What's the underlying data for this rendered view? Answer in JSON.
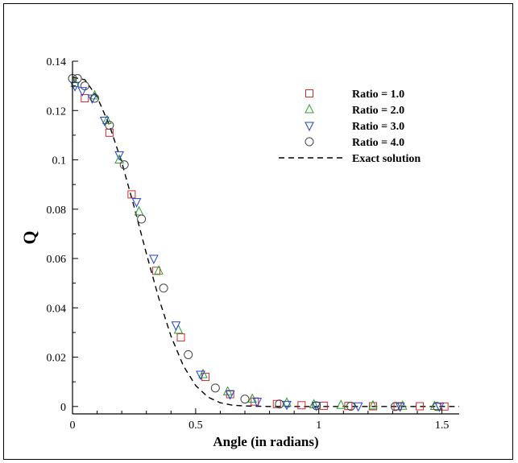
{
  "chart_data": {
    "type": "scatter",
    "title": "",
    "xlabel": "Angle (in radians)",
    "ylabel": "Q",
    "xlim": [
      0,
      1.57
    ],
    "ylim": [
      -0.003,
      0.14
    ],
    "xticks": [
      0,
      0.5,
      1,
      1.5
    ],
    "xtick_labels": [
      "0",
      "0.5",
      "1",
      "1.5"
    ],
    "yticks": [
      0,
      0.02,
      0.04,
      0.06,
      0.08,
      0.1,
      0.12,
      0.14
    ],
    "ytick_labels": [
      "0",
      "0.02",
      "0.04",
      "0.06",
      "0.08",
      "0.1",
      "0.12",
      "0.14"
    ],
    "grid": false,
    "legend_position": "top-right",
    "series": [
      {
        "name": "Ratio = 1.0",
        "marker": "square",
        "color": "#d62728",
        "x": [
          0.05,
          0.15,
          0.24,
          0.34,
          0.44,
          0.54,
          0.64,
          0.74,
          0.83,
          0.93,
          1.02,
          1.12,
          1.22,
          1.32,
          1.41,
          1.51
        ],
        "y": [
          0.125,
          0.111,
          0.086,
          0.055,
          0.028,
          0.012,
          0.005,
          0.002,
          0.001,
          0.0005,
          0.0003,
          0.0002,
          0.0001,
          0.0001,
          0.0001,
          0.0
        ]
      },
      {
        "name": "Ratio = 2.0",
        "marker": "triangle-up",
        "color": "#2ca02c",
        "x": [
          0.01,
          0.09,
          0.14,
          0.19,
          0.27,
          0.35,
          0.43,
          0.53,
          0.63,
          0.73,
          0.87,
          0.98,
          1.09,
          1.22,
          1.34,
          1.47
        ],
        "y": [
          0.131,
          0.126,
          0.116,
          0.1,
          0.079,
          0.055,
          0.031,
          0.013,
          0.006,
          0.003,
          0.0015,
          0.0008,
          0.0005,
          0.0003,
          0.0002,
          0.0001
        ]
      },
      {
        "name": "Ratio = 3.0",
        "marker": "triangle-down",
        "color": "#1f3fd6",
        "x": [
          0.01,
          0.04,
          0.08,
          0.13,
          0.19,
          0.26,
          0.33,
          0.42,
          0.52,
          0.64,
          0.75,
          0.87,
          0.99,
          1.16,
          1.33,
          1.49
        ],
        "y": [
          0.13,
          0.128,
          0.125,
          0.116,
          0.102,
          0.083,
          0.06,
          0.033,
          0.013,
          0.005,
          0.002,
          0.0008,
          0.0004,
          0.0002,
          0.0001,
          0.0
        ]
      },
      {
        "name": "Ratio = 4.0",
        "marker": "circle",
        "color": "#444444",
        "x": [
          0.0,
          0.02,
          0.05,
          0.09,
          0.15,
          0.21,
          0.28,
          0.37,
          0.47,
          0.58,
          0.7,
          0.84,
          0.99,
          1.13,
          1.31,
          1.48
        ],
        "y": [
          0.133,
          0.133,
          0.13,
          0.125,
          0.114,
          0.098,
          0.076,
          0.048,
          0.021,
          0.0075,
          0.003,
          0.001,
          0.0003,
          0.0001,
          0.0,
          0.0
        ]
      }
    ],
    "reference_curve": {
      "name": "Exact solution",
      "style": "dashed",
      "color": "#000000",
      "x": [
        0.0,
        0.05,
        0.1,
        0.15,
        0.2,
        0.25,
        0.3,
        0.35,
        0.4,
        0.45,
        0.5,
        0.55,
        0.6,
        0.65,
        0.7,
        0.75,
        0.8,
        0.9,
        1.0,
        1.1,
        1.2,
        1.3,
        1.4,
        1.5,
        1.57
      ],
      "y": [
        0.1335,
        0.1325,
        0.1255,
        0.114,
        0.099,
        0.081,
        0.062,
        0.044,
        0.0285,
        0.0165,
        0.0085,
        0.0038,
        0.0015,
        0.0005,
        0.0002,
        0.0001,
        0.0,
        0.0,
        0.0,
        0.0,
        0.0,
        0.0,
        0.0,
        0.0,
        0.0
      ]
    }
  }
}
